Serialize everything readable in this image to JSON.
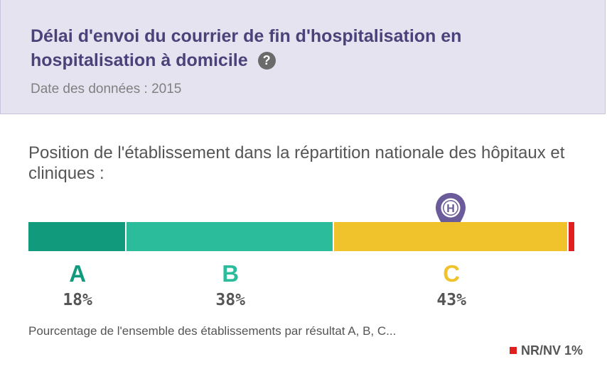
{
  "header": {
    "title": "Délai d'envoi du courrier de fin d'hospitalisation en hospitalisation à domicile",
    "help_icon": "question-circle-icon",
    "date_text": "Date des données : 2015"
  },
  "distribution": {
    "title": "Position de l'établissement dans la répartition nationale des hôpitaux et cliniques :",
    "marker_label": "H",
    "marker_grade": "C",
    "footnote": "Pourcentage de l'ensemble des établissements par résultat A, B, C...",
    "nr_label": "NR/NV 1%"
  },
  "chart_data": {
    "type": "bar",
    "stacked": true,
    "orientation": "horizontal",
    "categories": [
      "A",
      "B",
      "C",
      "NR/NV"
    ],
    "values": [
      18,
      38,
      43,
      1
    ],
    "labels": [
      "18%",
      "38%",
      "43%",
      "NR/NV 1%"
    ],
    "colors": [
      "#129a7d",
      "#2bbd9b",
      "#f0c22c",
      "#e0201f"
    ],
    "unit": "%"
  }
}
